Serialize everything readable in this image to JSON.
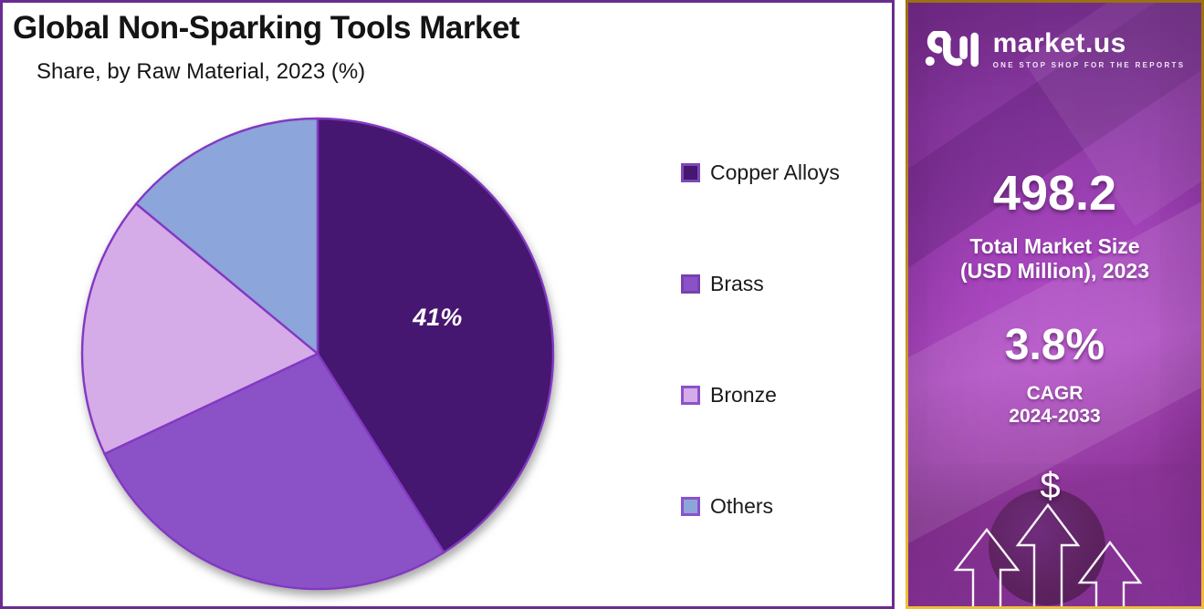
{
  "page": {
    "title": "Global Non-Sparking Tools Market",
    "subtitle": "Share, by Raw Material, 2023 (%)"
  },
  "chart_data": {
    "type": "pie",
    "title": "Global Non-Sparking Tools Market",
    "subtitle": "Share, by Raw Material, 2023 (%)",
    "unit": "percent",
    "rotation": "clockwise-from-12-o-clock",
    "legend_position": "right",
    "slice_stroke": "#8338C2",
    "slices": [
      {
        "label": "Copper Alloys",
        "value": 41,
        "data_label": "41%",
        "color": "#451770",
        "swatch_border": "#7A49B5",
        "estimated": false
      },
      {
        "label": "Brass",
        "value": 27,
        "data_label": "",
        "color": "#8B52C8",
        "swatch_border": "#7443AE",
        "estimated": true
      },
      {
        "label": "Bronze",
        "value": 18,
        "data_label": "",
        "color": "#D5ABE8",
        "swatch_border": "#8A52CC",
        "estimated": true
      },
      {
        "label": "Others",
        "value": 14,
        "data_label": "",
        "color": "#8CA5DA",
        "swatch_border": "#8A52CC",
        "estimated": true
      }
    ]
  },
  "sidebar": {
    "brand": "market.us",
    "tagline": "ONE STOP SHOP FOR THE REPORTS",
    "market_size": {
      "value": "498.2",
      "label_line1": "Total Market Size",
      "label_line2": "(USD Million), 2023"
    },
    "cagr": {
      "value": "3.8%",
      "label_line1": "CAGR",
      "label_line2": "2024-2033"
    },
    "dollar_symbol": "$"
  },
  "colors": {
    "chart_panel_border": "#6B2C90",
    "sidebar_border_gold_dark": "#9C6F12",
    "sidebar_border_gold_light": "#F2BE39",
    "sidebar_purple": "#8C3AA4",
    "pie_data_label_color": "#FFFFFF",
    "title_text": "#141414"
  }
}
